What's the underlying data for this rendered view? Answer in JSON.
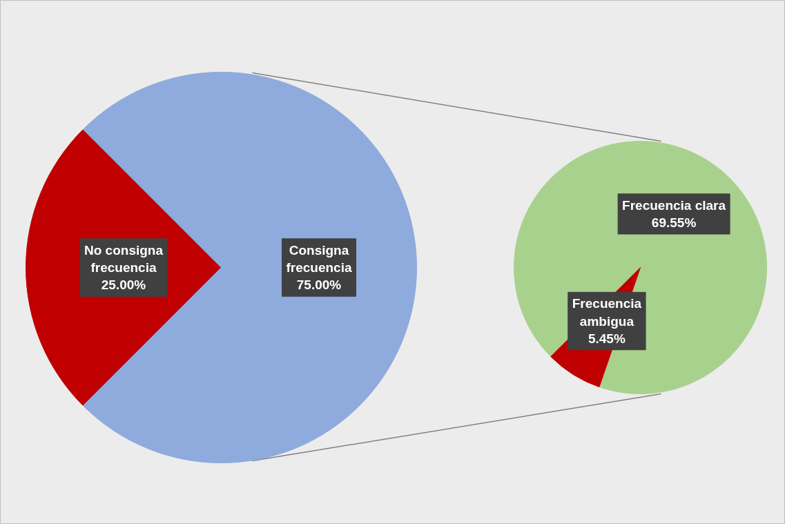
{
  "chart_data": [
    {
      "type": "pie",
      "categories": [
        "No consigna frecuencia",
        "Consigna frecuencia"
      ],
      "values": [
        25,
        75
      ],
      "colors": [
        "#c00000",
        "#8faadc"
      ],
      "value_labels": [
        "25.00%",
        "75.00%"
      ]
    },
    {
      "type": "pie",
      "categories": [
        "Frecuencia clara",
        "Frecuencia ambigua"
      ],
      "values": [
        69.55,
        5.45
      ],
      "colors": [
        "#a9d18e",
        "#c00000"
      ],
      "value_labels": [
        "69.55%",
        "5.45%"
      ]
    }
  ]
}
